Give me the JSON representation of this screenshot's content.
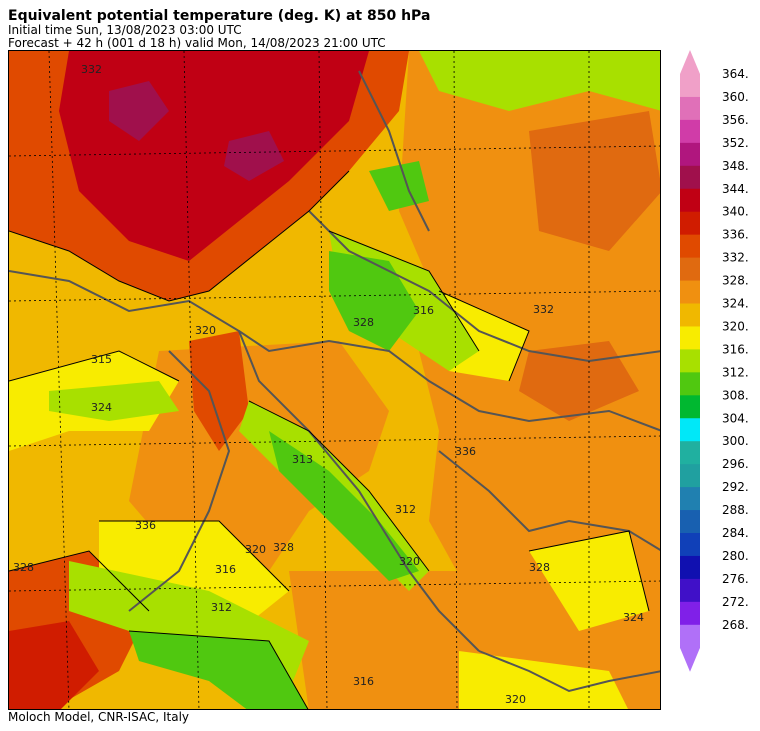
{
  "header": {
    "title": "Equivalent potential temperature (deg. K) at 850 hPa",
    "initial_time": "Initial time  Sun, 13/08/2023  03:00 UTC",
    "forecast": "Forecast  +  42 h  (001 d 18 h)  valid Mon, 14/08/2023 21:00 UTC"
  },
  "footer": "Moloch Model, CNR-ISAC, Italy",
  "map": {
    "contour_labels": [
      "332",
      "320",
      "315",
      "324",
      "316",
      "328",
      "313",
      "312",
      "336",
      "320",
      "328",
      "316",
      "312",
      "316",
      "320",
      "328",
      "332",
      "336",
      "328",
      "324",
      "320"
    ]
  },
  "colorbar": {
    "levels": [
      {
        "label": "364.",
        "color": "#f0a0c8"
      },
      {
        "label": "360.",
        "color": "#e070b8"
      },
      {
        "label": "356.",
        "color": "#d03ca8"
      },
      {
        "label": "352.",
        "color": "#b0167e"
      },
      {
        "label": "348.",
        "color": "#a0104c"
      },
      {
        "label": "344.",
        "color": "#c00014"
      },
      {
        "label": "340.",
        "color": "#d01c00"
      },
      {
        "label": "336.",
        "color": "#e04a00"
      },
      {
        "label": "332.",
        "color": "#e06a10"
      },
      {
        "label": "328.",
        "color": "#f09010"
      },
      {
        "label": "324.",
        "color": "#f0b800"
      },
      {
        "label": "320.",
        "color": "#f8ec00"
      },
      {
        "label": "316.",
        "color": "#a8e000"
      },
      {
        "label": "312.",
        "color": "#50c810"
      },
      {
        "label": "308.",
        "color": "#00b830"
      },
      {
        "label": "304.",
        "color": "#00e8f8"
      },
      {
        "label": "300.",
        "color": "#20b0a0"
      },
      {
        "label": "296.",
        "color": "#20a0a0"
      },
      {
        "label": "292.",
        "color": "#2080b0"
      },
      {
        "label": "288.",
        "color": "#1860b0"
      },
      {
        "label": "284.",
        "color": "#1040b8"
      },
      {
        "label": "280.",
        "color": "#1010b0"
      },
      {
        "label": "276.",
        "color": "#4010c8"
      },
      {
        "label": "272.",
        "color": "#8020e8"
      },
      {
        "label": "268.",
        "color": "#b070f8"
      }
    ]
  }
}
